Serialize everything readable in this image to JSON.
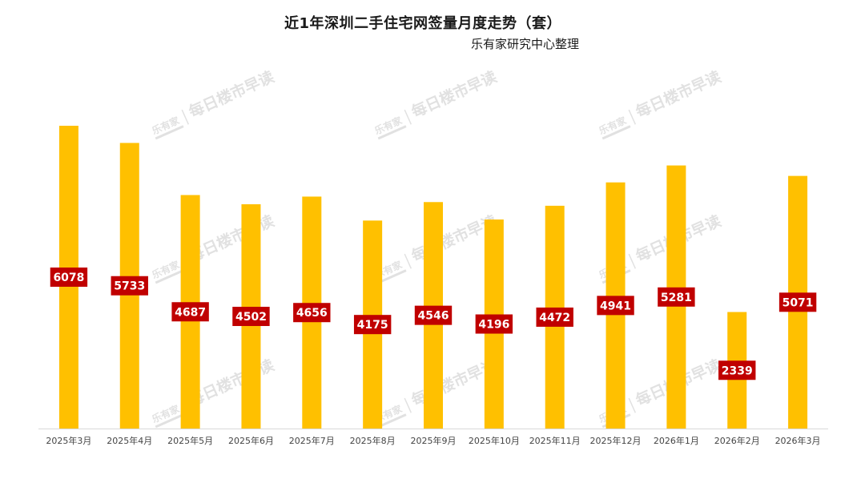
{
  "chart_title": "近1年深圳二手住宅网签量月度走势（套）",
  "chart_subtitle": "乐有家研究中心整理",
  "watermark": {
    "text": "每日楼市早读",
    "logo": "乐有家"
  },
  "colors": {
    "bar": "#ffc000",
    "label_bg": "#c00000",
    "label_text": "#ffffff",
    "axis": "#d9d9d9"
  },
  "chart_data": {
    "type": "bar",
    "title": "近1年深圳二手住宅网签量月度走势（套）",
    "subtitle": "乐有家研究中心整理",
    "xlabel": "",
    "ylabel": "",
    "categories": [
      "2025年3月",
      "2025年4月",
      "2025年5月",
      "2025年6月",
      "2025年7月",
      "2025年8月",
      "2025年9月",
      "2025年10月",
      "2025年11月",
      "2025年12月",
      "2026年1月",
      "2026年2月",
      "2026年3月"
    ],
    "values": [
      6078,
      5733,
      4687,
      4502,
      4656,
      4175,
      4546,
      4196,
      4472,
      4941,
      5281,
      2339,
      5071
    ],
    "ylim": [
      0,
      6300
    ],
    "grid": false,
    "legend": "none",
    "data_labels": true
  }
}
